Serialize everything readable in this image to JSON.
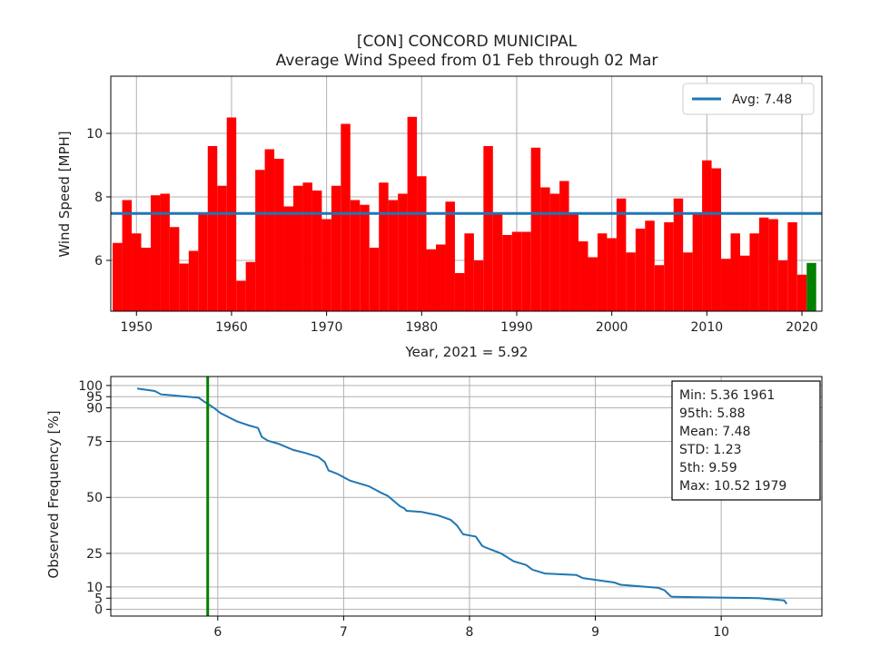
{
  "colors": {
    "bar": "#ff0000",
    "bar_current": "#008000",
    "avg_line": "#1f77b4",
    "freq_line": "#1f77b4",
    "current_vline": "#008000",
    "grid": "#b0b0b0"
  },
  "chart_data": [
    {
      "type": "bar",
      "title": "[CON] CONCORD MUNICIPAL",
      "subtitle": "Average Wind Speed from 01 Feb through 02 Mar",
      "xlabel": "Year, 2021 = 5.92",
      "ylabel": "Wind Speed [MPH]",
      "xlim": [
        1947.3,
        2022.1
      ],
      "ylim": [
        4.4,
        11.8
      ],
      "xticks": [
        1950,
        1960,
        1970,
        1980,
        1990,
        2000,
        2010,
        2020
      ],
      "yticks": [
        6,
        8,
        10
      ],
      "grid": true,
      "legend": {
        "placement": "top-right",
        "entries": [
          "Avg: 7.48"
        ]
      },
      "avg": 7.48,
      "current_year": 2021,
      "x": [
        1948,
        1949,
        1950,
        1951,
        1952,
        1953,
        1954,
        1955,
        1956,
        1957,
        1958,
        1959,
        1960,
        1961,
        1962,
        1963,
        1964,
        1965,
        1966,
        1967,
        1968,
        1969,
        1970,
        1971,
        1972,
        1973,
        1974,
        1975,
        1976,
        1977,
        1978,
        1979,
        1980,
        1981,
        1982,
        1983,
        1984,
        1985,
        1986,
        1987,
        1988,
        1989,
        1990,
        1991,
        1992,
        1993,
        1994,
        1995,
        1996,
        1997,
        1998,
        1999,
        2000,
        2001,
        2002,
        2003,
        2004,
        2005,
        2006,
        2007,
        2008,
        2009,
        2010,
        2011,
        2012,
        2013,
        2014,
        2015,
        2016,
        2017,
        2018,
        2019,
        2020,
        2021
      ],
      "values": [
        6.55,
        7.9,
        6.85,
        6.4,
        8.05,
        8.1,
        7.05,
        5.9,
        6.3,
        7.5,
        9.6,
        8.35,
        10.5,
        5.36,
        5.95,
        8.85,
        9.5,
        9.2,
        7.7,
        8.35,
        8.45,
        8.2,
        7.3,
        8.35,
        10.3,
        7.9,
        7.75,
        6.4,
        8.45,
        7.9,
        8.1,
        10.52,
        8.65,
        6.35,
        6.5,
        7.85,
        5.6,
        6.85,
        6.0,
        9.6,
        7.5,
        6.8,
        6.9,
        6.9,
        9.55,
        8.3,
        8.1,
        8.5,
        7.45,
        6.6,
        6.1,
        6.85,
        6.7,
        7.95,
        6.25,
        7.0,
        7.25,
        5.85,
        7.2,
        7.95,
        6.25,
        7.5,
        9.15,
        8.9,
        6.05,
        6.85,
        6.15,
        6.85,
        7.35,
        7.3,
        6.0,
        7.2,
        5.55,
        5.92
      ]
    },
    {
      "type": "line",
      "xlabel": "",
      "ylabel": "Observed Frequency [%]",
      "xlim": [
        5.15,
        10.8
      ],
      "ylim": [
        -3,
        104
      ],
      "xticks": [
        6,
        7,
        8,
        9,
        10
      ],
      "yticks": [
        0,
        5,
        10,
        25,
        50,
        75,
        90,
        95,
        100
      ],
      "grid": true,
      "current_value": 5.92,
      "stats_box": {
        "placement": "top-right",
        "lines": [
          "Min: 5.36 1961",
          "95th: 5.88",
          "Mean: 7.48",
          "STD: 1.23",
          "5th: 9.59",
          "Max: 10.52 1979"
        ]
      },
      "series": [
        {
          "x": [
            5.36,
            5.5,
            5.55,
            5.58,
            5.85,
            5.88,
            5.92,
            5.97,
            6.02,
            6.15,
            6.25,
            6.32,
            6.35,
            6.4,
            6.48,
            6.6,
            6.7,
            6.8,
            6.85,
            6.88,
            6.9,
            6.95,
            7.05,
            7.2,
            7.3,
            7.35,
            7.45,
            7.48,
            7.5,
            7.62,
            7.75,
            7.85,
            7.9,
            7.95,
            8.05,
            8.1,
            8.12,
            8.25,
            8.35,
            8.45,
            8.5,
            8.6,
            8.85,
            8.9,
            9.15,
            9.2,
            9.5,
            9.55,
            9.6,
            9.62,
            10.3,
            10.5,
            10.52
          ],
          "y": [
            98.6,
            97.5,
            96.0,
            95.9,
            94.5,
            93.2,
            91.8,
            90.0,
            87.7,
            84.0,
            82.1,
            81.0,
            77.0,
            75.3,
            74.0,
            71.2,
            69.8,
            68.0,
            65.8,
            62.0,
            61.6,
            60.5,
            57.5,
            55.0,
            52.0,
            50.7,
            46.0,
            45.2,
            44.0,
            43.5,
            42.0,
            40.0,
            37.5,
            33.5,
            32.5,
            28.4,
            27.8,
            25.0,
            21.5,
            19.8,
            17.7,
            16.0,
            15.3,
            14.0,
            12.0,
            11.0,
            9.6,
            8.5,
            5.8,
            5.6,
            5.0,
            4.0,
            2.4
          ]
        }
      ]
    }
  ]
}
